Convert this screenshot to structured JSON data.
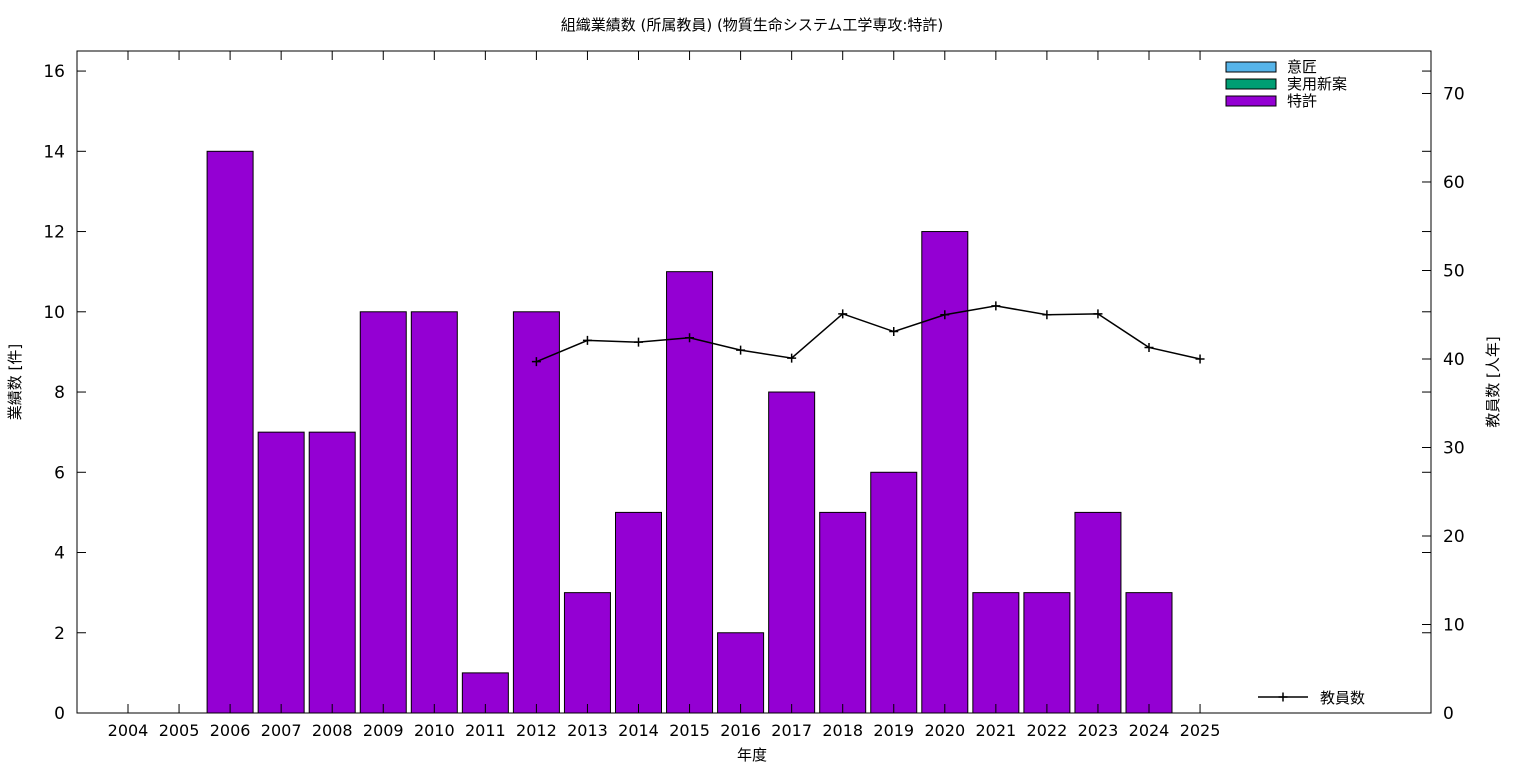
{
  "chart_data": {
    "type": "bar",
    "title": "組織業績数 (所属教員) (物質生命システム工学専攻:特許)",
    "xlabel": "年度",
    "ylabel": "業績数 [件]",
    "y2label": "教員数 [人年]",
    "categories": [
      "2004",
      "2005",
      "2006",
      "2007",
      "2008",
      "2009",
      "2010",
      "2011",
      "2012",
      "2013",
      "2014",
      "2015",
      "2016",
      "2017",
      "2018",
      "2019",
      "2020",
      "2021",
      "2022",
      "2023",
      "2024",
      "2025"
    ],
    "ylim": [
      0,
      16.5
    ],
    "yticks": [
      0,
      2,
      4,
      6,
      8,
      10,
      12,
      14,
      16
    ],
    "y2lim": [
      0,
      74.8
    ],
    "y2ticks": [
      0,
      10,
      20,
      30,
      40,
      50,
      60,
      70
    ],
    "grid": false,
    "legend_position": "top-right",
    "series": [
      {
        "name": "意匠",
        "kind": "bar",
        "color": "#56b4e9",
        "values": [
          0,
          0,
          0,
          0,
          0,
          0,
          0,
          0,
          0,
          0,
          0,
          0,
          0,
          0,
          0,
          0,
          0,
          0,
          0,
          0,
          0,
          0
        ]
      },
      {
        "name": "実用新案",
        "kind": "bar",
        "color": "#009e73",
        "values": [
          0,
          0,
          0,
          0,
          0,
          0,
          0,
          0,
          0,
          0,
          0,
          0,
          0,
          0,
          0,
          0,
          0,
          0,
          0,
          0,
          0,
          0
        ]
      },
      {
        "name": "特許",
        "kind": "bar",
        "color": "#9400d3",
        "values": [
          0,
          0,
          14,
          7,
          7,
          10,
          10,
          1,
          10,
          3,
          5,
          11,
          2,
          8,
          5,
          6,
          12,
          3,
          3,
          5,
          3,
          0
        ]
      },
      {
        "name": "教員数",
        "kind": "line",
        "axis": "y2",
        "color": "#000000",
        "values": [
          null,
          null,
          null,
          null,
          null,
          null,
          null,
          null,
          39.7,
          42.1,
          41.9,
          42.4,
          41.0,
          40.1,
          45.1,
          43.1,
          45.0,
          46.0,
          45.0,
          45.1,
          41.3,
          40.0
        ]
      }
    ]
  }
}
